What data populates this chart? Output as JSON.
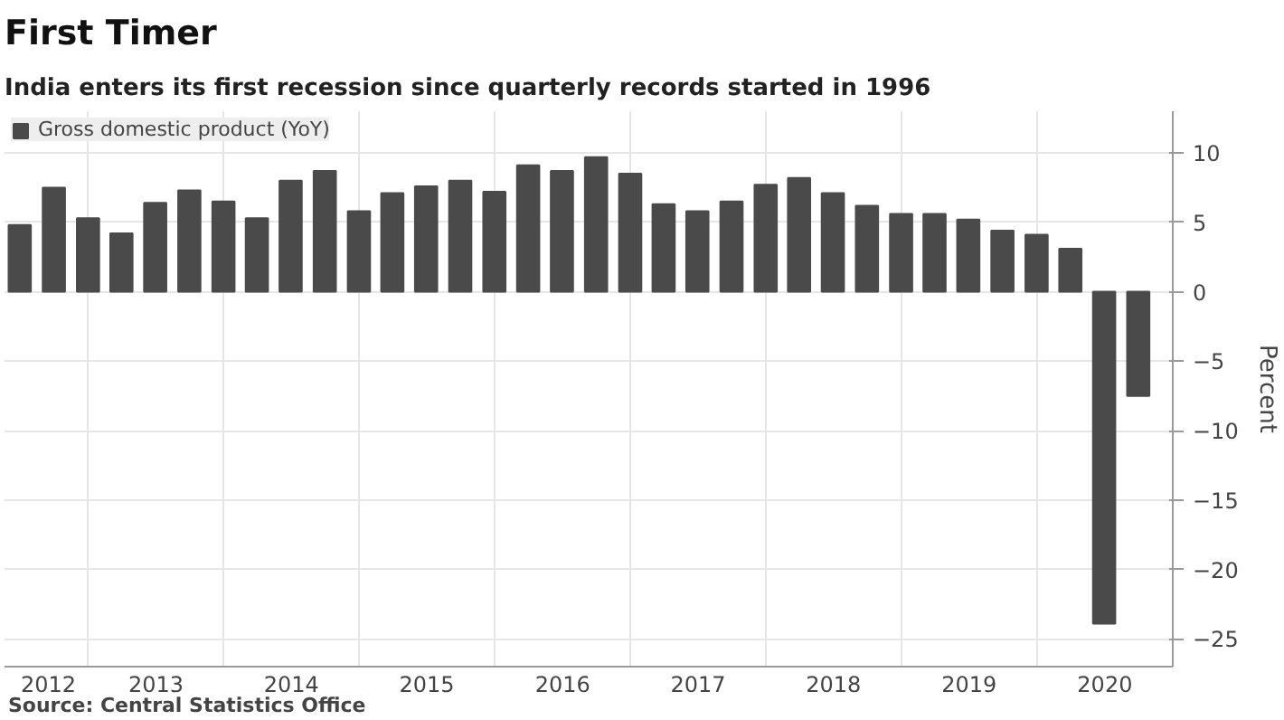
{
  "chart_data": {
    "type": "bar",
    "title": "First Timer",
    "subtitle": "India enters its first recession since quarterly records started in 1996",
    "ylabel": "Percent",
    "annotations": [
      "Source: Central Statistics Office"
    ],
    "x": [
      "2012-06-30",
      "2012-09-30",
      "2012-12-31",
      "2013-03-31",
      "2013-06-30",
      "2013-09-30",
      "2013-12-31",
      "2014-03-31",
      "2014-06-30",
      "2014-09-30",
      "2014-12-31",
      "2015-03-31",
      "2015-06-30",
      "2015-09-30",
      "2015-12-31",
      "2016-03-31",
      "2016-06-30",
      "2016-09-30",
      "2016-12-31",
      "2017-03-31",
      "2017-06-30",
      "2017-09-30",
      "2017-12-31",
      "2018-03-31",
      "2018-06-30",
      "2018-09-30",
      "2018-12-31",
      "2019-03-31",
      "2019-06-30",
      "2019-09-30",
      "2019-12-31",
      "2020-03-31",
      "2020-06-30",
      "2020-09-30"
    ],
    "series": [
      {
        "name": "Gross domestic product (YoY)",
        "color": "#4a4a4a",
        "values": [
          4.8,
          7.5,
          5.3,
          4.2,
          6.4,
          7.3,
          6.5,
          5.3,
          8.0,
          8.7,
          5.8,
          7.1,
          7.6,
          8.0,
          7.2,
          9.1,
          8.7,
          9.7,
          8.5,
          6.3,
          5.8,
          6.5,
          7.7,
          8.2,
          7.1,
          6.2,
          5.6,
          5.6,
          5.2,
          4.4,
          4.1,
          3.1,
          -23.9,
          -7.5
        ]
      }
    ],
    "xlim": [
      "2012-05-20",
      "2021-01-01"
    ],
    "xticks": [
      {
        "value": "2012-09-15",
        "label": "2012"
      },
      {
        "value": "2013-01-01",
        "label": null
      },
      {
        "value": "2013-07-02",
        "label": "2013"
      },
      {
        "value": "2014-01-01",
        "label": null
      },
      {
        "value": "2014-07-02",
        "label": "2014"
      },
      {
        "value": "2015-01-01",
        "label": null
      },
      {
        "value": "2015-07-02",
        "label": "2015"
      },
      {
        "value": "2016-01-01",
        "label": null
      },
      {
        "value": "2016-07-02",
        "label": "2016"
      },
      {
        "value": "2017-01-01",
        "label": null
      },
      {
        "value": "2017-07-02",
        "label": "2017"
      },
      {
        "value": "2018-01-01",
        "label": null
      },
      {
        "value": "2018-07-02",
        "label": "2018"
      },
      {
        "value": "2019-01-01",
        "label": null
      },
      {
        "value": "2019-07-02",
        "label": "2019"
      },
      {
        "value": "2020-01-01",
        "label": null
      },
      {
        "value": "2020-07-02",
        "label": "2020"
      },
      {
        "value": "2021-01-01",
        "label": null
      }
    ],
    "ylim": [
      -27,
      13
    ],
    "yticks": [
      -25,
      -20,
      -15,
      -10,
      -5,
      0,
      5,
      10
    ],
    "grid": true,
    "legend": "top left"
  }
}
